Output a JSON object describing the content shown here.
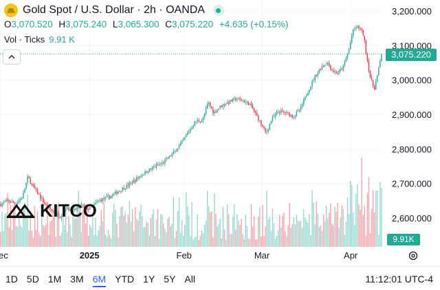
{
  "header": {
    "title": "Gold Spot / U.S. Dollar · 2h · OANDA",
    "ohlc": [
      {
        "key": "O",
        "value": "3,070.520"
      },
      {
        "key": "H",
        "value": "3,075.240"
      },
      {
        "key": "L",
        "value": "3,065.300"
      },
      {
        "key": "C",
        "value": "3,075.220"
      }
    ],
    "change": "+4.635 (+0.15%)",
    "volume_label": "Vol · Ticks",
    "volume_value": "9.91 K"
  },
  "price_tag": "3,075.220",
  "volume_tag": "9.91K",
  "watermark": "KITCO",
  "footer": {
    "ranges": [
      "1D",
      "5D",
      "1M",
      "3M",
      "6M",
      "YTD",
      "1Y",
      "5Y",
      "All"
    ],
    "active_range": "6M",
    "clock": "11:12:01 UTC-4"
  },
  "colors": {
    "up": "#22ab94",
    "down": "#f23645",
    "accent": "#2962ff",
    "price_line": "#22ab94"
  },
  "icons": [
    "gold-coin-icon",
    "live-indicator-icon",
    "chevron-up-icon",
    "settings-gear-icon"
  ],
  "chart_data": {
    "type": "candlestick",
    "ylim": [
      2600,
      3200
    ],
    "yticks": [
      "2,600.000",
      "2,700.000",
      "2,800.000",
      "2,900.000",
      "3,000.000",
      "3,100.000",
      "3,200.000"
    ],
    "ytick_values": [
      2600,
      2700,
      2800,
      2900,
      3000,
      3100,
      3200
    ],
    "xticks": [
      {
        "label": "ec",
        "x": 0.0,
        "bold": false
      },
      {
        "label": "2025",
        "x": 0.247,
        "bold": true
      },
      {
        "label": "Feb",
        "x": 0.508,
        "bold": false
      },
      {
        "label": "Mar",
        "x": 0.723,
        "bold": false
      },
      {
        "label": "Apr",
        "x": 0.968,
        "bold": false
      }
    ],
    "last_price": 3075.22,
    "price_path": [
      [
        0.0,
        2640
      ],
      [
        0.02,
        2650
      ],
      [
        0.04,
        2642
      ],
      [
        0.06,
        2660
      ],
      [
        0.075,
        2718
      ],
      [
        0.09,
        2690
      ],
      [
        0.11,
        2660
      ],
      [
        0.13,
        2630
      ],
      [
        0.15,
        2615
      ],
      [
        0.165,
        2605
      ],
      [
        0.18,
        2630
      ],
      [
        0.2,
        2618
      ],
      [
        0.22,
        2638
      ],
      [
        0.245,
        2625
      ],
      [
        0.27,
        2650
      ],
      [
        0.3,
        2660
      ],
      [
        0.33,
        2680
      ],
      [
        0.36,
        2700
      ],
      [
        0.39,
        2725
      ],
      [
        0.42,
        2745
      ],
      [
        0.45,
        2760
      ],
      [
        0.48,
        2790
      ],
      [
        0.5,
        2815
      ],
      [
        0.52,
        2850
      ],
      [
        0.54,
        2880
      ],
      [
        0.56,
        2885
      ],
      [
        0.575,
        2935
      ],
      [
        0.59,
        2905
      ],
      [
        0.61,
        2925
      ],
      [
        0.63,
        2935
      ],
      [
        0.65,
        2945
      ],
      [
        0.67,
        2940
      ],
      [
        0.69,
        2930
      ],
      [
        0.71,
        2895
      ],
      [
        0.72,
        2875
      ],
      [
        0.735,
        2845
      ],
      [
        0.75,
        2885
      ],
      [
        0.77,
        2910
      ],
      [
        0.79,
        2905
      ],
      [
        0.81,
        2895
      ],
      [
        0.83,
        2915
      ],
      [
        0.85,
        2965
      ],
      [
        0.87,
        3010
      ],
      [
        0.89,
        3040
      ],
      [
        0.905,
        3050
      ],
      [
        0.92,
        3025
      ],
      [
        0.935,
        3020
      ],
      [
        0.95,
        3040
      ],
      [
        0.965,
        3090
      ],
      [
        0.975,
        3140
      ],
      [
        0.985,
        3155
      ],
      [
        0.995,
        3150
      ],
      [
        1.005,
        3130
      ],
      [
        1.015,
        3060
      ],
      [
        1.025,
        3000
      ],
      [
        1.035,
        2975
      ],
      [
        1.045,
        3020
      ],
      [
        1.055,
        3075
      ]
    ],
    "volume_range": [
      0,
      18000
    ]
  }
}
